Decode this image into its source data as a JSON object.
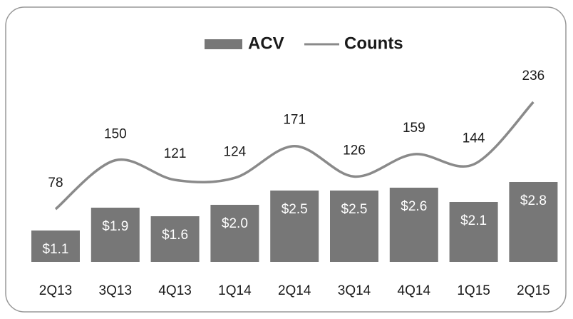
{
  "chart_data": {
    "type": "bar-line",
    "categories": [
      "2Q13",
      "3Q13",
      "4Q13",
      "1Q14",
      "2Q14",
      "3Q14",
      "4Q14",
      "1Q15",
      "2Q15"
    ],
    "series": [
      {
        "name": "ACV",
        "type": "bar",
        "color": "#777777",
        "values": [
          1.1,
          1.9,
          1.6,
          2.0,
          2.5,
          2.5,
          2.6,
          2.1,
          2.8
        ],
        "value_labels": [
          "$1.1",
          "$1.9",
          "$1.6",
          "$2.0",
          "$2.5",
          "$2.5",
          "$2.6",
          "$2.1",
          "$2.8"
        ]
      },
      {
        "name": "Counts",
        "type": "line",
        "color": "#8a8a8a",
        "axis": "y2",
        "values": [
          78,
          150,
          121,
          124,
          171,
          126,
          159,
          144,
          236
        ]
      }
    ],
    "legend": "top"
  }
}
